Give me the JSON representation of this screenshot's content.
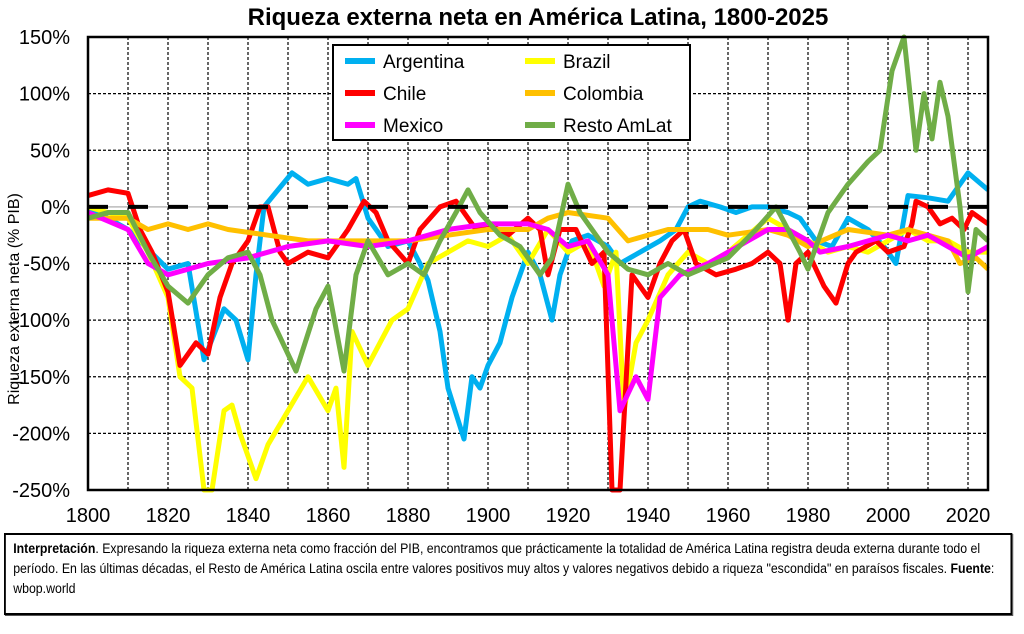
{
  "chart_data": {
    "type": "line",
    "title": "Riqueza externa neta en América Latina, 1800-2025",
    "ylabel": "Riqueza externa neta (% PIB)",
    "xlabel": "",
    "xlim": [
      1800,
      2025
    ],
    "ylim": [
      -250,
      150
    ],
    "xticks": [
      "1800",
      "1820",
      "1840",
      "1860",
      "1880",
      "1900",
      "1920",
      "1940",
      "1960",
      "1980",
      "2000",
      "2020"
    ],
    "yticks": [
      "150%",
      "100%",
      "50%",
      "0%",
      "-50%",
      "-100%",
      "-150%",
      "-200%",
      "-250%"
    ],
    "grid": true,
    "legend_position": "top-center",
    "series": [
      {
        "name": "Argentina",
        "color": "#00b0f0",
        "points": [
          [
            1800,
            0
          ],
          [
            1810,
            -20
          ],
          [
            1820,
            -55
          ],
          [
            1825,
            -50
          ],
          [
            1829,
            -135
          ],
          [
            1834,
            -90
          ],
          [
            1837,
            -100
          ],
          [
            1840,
            -135
          ],
          [
            1842,
            -60
          ],
          [
            1844,
            0
          ],
          [
            1851,
            30
          ],
          [
            1855,
            20
          ],
          [
            1860,
            25
          ],
          [
            1865,
            20
          ],
          [
            1867,
            25
          ],
          [
            1870,
            -10
          ],
          [
            1875,
            -35
          ],
          [
            1880,
            -30
          ],
          [
            1883,
            -50
          ],
          [
            1885,
            -65
          ],
          [
            1888,
            -110
          ],
          [
            1890,
            -160
          ],
          [
            1894,
            -205
          ],
          [
            1896,
            -150
          ],
          [
            1898,
            -160
          ],
          [
            1900,
            -140
          ],
          [
            1903,
            -120
          ],
          [
            1906,
            -80
          ],
          [
            1910,
            -40
          ],
          [
            1913,
            -60
          ],
          [
            1916,
            -100
          ],
          [
            1918,
            -60
          ],
          [
            1921,
            -30
          ],
          [
            1925,
            -25
          ],
          [
            1930,
            -35
          ],
          [
            1933,
            -50
          ],
          [
            1938,
            -40
          ],
          [
            1943,
            -30
          ],
          [
            1947,
            -20
          ],
          [
            1950,
            0
          ],
          [
            1953,
            5
          ],
          [
            1958,
            0
          ],
          [
            1962,
            -5
          ],
          [
            1966,
            0
          ],
          [
            1970,
            0
          ],
          [
            1975,
            -5
          ],
          [
            1978,
            -10
          ],
          [
            1982,
            -30
          ],
          [
            1986,
            -35
          ],
          [
            1990,
            -10
          ],
          [
            1995,
            -20
          ],
          [
            1999,
            -35
          ],
          [
            2002,
            -50
          ],
          [
            2005,
            10
          ],
          [
            2010,
            8
          ],
          [
            2015,
            5
          ],
          [
            2020,
            30
          ],
          [
            2025,
            15
          ]
        ]
      },
      {
        "name": "Brazil",
        "color": "#ffff00",
        "points": [
          [
            1800,
            0
          ],
          [
            1810,
            -10
          ],
          [
            1815,
            -40
          ],
          [
            1820,
            -80
          ],
          [
            1823,
            -150
          ],
          [
            1826,
            -160
          ],
          [
            1829,
            -250
          ],
          [
            1831,
            -250
          ],
          [
            1834,
            -180
          ],
          [
            1836,
            -175
          ],
          [
            1838,
            -200
          ],
          [
            1842,
            -240
          ],
          [
            1845,
            -210
          ],
          [
            1850,
            -180
          ],
          [
            1855,
            -150
          ],
          [
            1860,
            -180
          ],
          [
            1862,
            -160
          ],
          [
            1864,
            -230
          ],
          [
            1866,
            -110
          ],
          [
            1870,
            -140
          ],
          [
            1876,
            -100
          ],
          [
            1880,
            -90
          ],
          [
            1885,
            -50
          ],
          [
            1890,
            -40
          ],
          [
            1895,
            -30
          ],
          [
            1900,
            -35
          ],
          [
            1905,
            -25
          ],
          [
            1910,
            -50
          ],
          [
            1915,
            -20
          ],
          [
            1920,
            -40
          ],
          [
            1925,
            -30
          ],
          [
            1929,
            -70
          ],
          [
            1932,
            -40
          ],
          [
            1934,
            -180
          ],
          [
            1937,
            -120
          ],
          [
            1940,
            -100
          ],
          [
            1945,
            -60
          ],
          [
            1950,
            -40
          ],
          [
            1955,
            -50
          ],
          [
            1960,
            -40
          ],
          [
            1965,
            -25
          ],
          [
            1970,
            -10
          ],
          [
            1975,
            -20
          ],
          [
            1980,
            -30
          ],
          [
            1985,
            -40
          ],
          [
            1990,
            -35
          ],
          [
            1995,
            -40
          ],
          [
            2000,
            -30
          ],
          [
            2005,
            -20
          ],
          [
            2010,
            -30
          ],
          [
            2015,
            -30
          ],
          [
            2020,
            -40
          ],
          [
            2025,
            -40
          ]
        ]
      },
      {
        "name": "Chile",
        "color": "#ff0000",
        "points": [
          [
            1800,
            10
          ],
          [
            1805,
            15
          ],
          [
            1810,
            12
          ],
          [
            1813,
            -20
          ],
          [
            1816,
            -40
          ],
          [
            1820,
            -75
          ],
          [
            1823,
            -140
          ],
          [
            1827,
            -120
          ],
          [
            1830,
            -130
          ],
          [
            1833,
            -80
          ],
          [
            1836,
            -50
          ],
          [
            1840,
            -30
          ],
          [
            1843,
            0
          ],
          [
            1845,
            0
          ],
          [
            1848,
            -40
          ],
          [
            1850,
            -50
          ],
          [
            1855,
            -40
          ],
          [
            1860,
            -45
          ],
          [
            1865,
            -20
          ],
          [
            1869,
            5
          ],
          [
            1872,
            -5
          ],
          [
            1875,
            -30
          ],
          [
            1880,
            -50
          ],
          [
            1883,
            -20
          ],
          [
            1888,
            0
          ],
          [
            1892,
            5
          ],
          [
            1897,
            -20
          ],
          [
            1900,
            -15
          ],
          [
            1905,
            -25
          ],
          [
            1910,
            -10
          ],
          [
            1913,
            -20
          ],
          [
            1915,
            -60
          ],
          [
            1918,
            -20
          ],
          [
            1922,
            -20
          ],
          [
            1926,
            -50
          ],
          [
            1929,
            -40
          ],
          [
            1931,
            -250
          ],
          [
            1933,
            -250
          ],
          [
            1936,
            -60
          ],
          [
            1940,
            -80
          ],
          [
            1943,
            -50
          ],
          [
            1946,
            -30
          ],
          [
            1949,
            -20
          ],
          [
            1952,
            -50
          ],
          [
            1957,
            -60
          ],
          [
            1962,
            -55
          ],
          [
            1966,
            -50
          ],
          [
            1970,
            -40
          ],
          [
            1973,
            -50
          ],
          [
            1975,
            -100
          ],
          [
            1977,
            -50
          ],
          [
            1980,
            -40
          ],
          [
            1984,
            -70
          ],
          [
            1987,
            -85
          ],
          [
            1990,
            -50
          ],
          [
            1992,
            -40
          ],
          [
            1997,
            -30
          ],
          [
            2000,
            -40
          ],
          [
            2004,
            -35
          ],
          [
            2006,
            -15
          ],
          [
            2007,
            5
          ],
          [
            2010,
            0
          ],
          [
            2013,
            -15
          ],
          [
            2016,
            -10
          ],
          [
            2019,
            -20
          ],
          [
            2021,
            -5
          ],
          [
            2025,
            -15
          ]
        ]
      },
      {
        "name": "Colombia",
        "color": "#ffc000",
        "points": [
          [
            1800,
            -10
          ],
          [
            1810,
            -10
          ],
          [
            1815,
            -20
          ],
          [
            1820,
            -15
          ],
          [
            1825,
            -20
          ],
          [
            1830,
            -15
          ],
          [
            1835,
            -20
          ],
          [
            1845,
            -25
          ],
          [
            1855,
            -30
          ],
          [
            1870,
            -30
          ],
          [
            1880,
            -30
          ],
          [
            1890,
            -25
          ],
          [
            1900,
            -20
          ],
          [
            1910,
            -20
          ],
          [
            1915,
            -10
          ],
          [
            1920,
            -5
          ],
          [
            1930,
            -10
          ],
          [
            1935,
            -30
          ],
          [
            1945,
            -20
          ],
          [
            1955,
            -20
          ],
          [
            1960,
            -25
          ],
          [
            1970,
            -20
          ],
          [
            1975,
            -25
          ],
          [
            1980,
            -35
          ],
          [
            1990,
            -20
          ],
          [
            2000,
            -25
          ],
          [
            2005,
            -20
          ],
          [
            2010,
            -25
          ],
          [
            2015,
            -30
          ],
          [
            2018,
            -50
          ],
          [
            2022,
            -45
          ],
          [
            2025,
            -55
          ]
        ]
      },
      {
        "name": "Mexico",
        "color": "#ff00ff",
        "points": [
          [
            1800,
            -5
          ],
          [
            1810,
            -20
          ],
          [
            1815,
            -50
          ],
          [
            1820,
            -60
          ],
          [
            1825,
            -55
          ],
          [
            1830,
            -50
          ],
          [
            1840,
            -45
          ],
          [
            1850,
            -35
          ],
          [
            1860,
            -30
          ],
          [
            1870,
            -35
          ],
          [
            1880,
            -30
          ],
          [
            1890,
            -20
          ],
          [
            1900,
            -15
          ],
          [
            1910,
            -15
          ],
          [
            1915,
            -20
          ],
          [
            1920,
            -35
          ],
          [
            1925,
            -30
          ],
          [
            1930,
            -60
          ],
          [
            1933,
            -180
          ],
          [
            1937,
            -150
          ],
          [
            1940,
            -170
          ],
          [
            1943,
            -80
          ],
          [
            1948,
            -60
          ],
          [
            1955,
            -50
          ],
          [
            1960,
            -40
          ],
          [
            1965,
            -30
          ],
          [
            1970,
            -20
          ],
          [
            1975,
            -20
          ],
          [
            1980,
            -30
          ],
          [
            1983,
            -40
          ],
          [
            1990,
            -35
          ],
          [
            1995,
            -30
          ],
          [
            2000,
            -25
          ],
          [
            2005,
            -30
          ],
          [
            2010,
            -25
          ],
          [
            2015,
            -35
          ],
          [
            2020,
            -45
          ],
          [
            2025,
            -35
          ]
        ]
      },
      {
        "name": "Resto AmLat",
        "color": "#70ad47",
        "points": [
          [
            1800,
            -10
          ],
          [
            1805,
            -5
          ],
          [
            1810,
            -5
          ],
          [
            1815,
            -40
          ],
          [
            1820,
            -70
          ],
          [
            1825,
            -85
          ],
          [
            1830,
            -60
          ],
          [
            1835,
            -45
          ],
          [
            1840,
            -40
          ],
          [
            1843,
            -60
          ],
          [
            1846,
            -100
          ],
          [
            1852,
            -145
          ],
          [
            1857,
            -90
          ],
          [
            1860,
            -70
          ],
          [
            1864,
            -145
          ],
          [
            1867,
            -60
          ],
          [
            1870,
            -30
          ],
          [
            1875,
            -60
          ],
          [
            1880,
            -50
          ],
          [
            1884,
            -60
          ],
          [
            1888,
            -30
          ],
          [
            1892,
            -5
          ],
          [
            1895,
            15
          ],
          [
            1898,
            -5
          ],
          [
            1903,
            -25
          ],
          [
            1908,
            -35
          ],
          [
            1913,
            -60
          ],
          [
            1916,
            -45
          ],
          [
            1920,
            20
          ],
          [
            1923,
            -5
          ],
          [
            1928,
            -30
          ],
          [
            1930,
            -40
          ],
          [
            1935,
            -55
          ],
          [
            1940,
            -60
          ],
          [
            1945,
            -50
          ],
          [
            1950,
            -60
          ],
          [
            1960,
            -45
          ],
          [
            1967,
            -20
          ],
          [
            1972,
            0
          ],
          [
            1978,
            -40
          ],
          [
            1980,
            -55
          ],
          [
            1985,
            -5
          ],
          [
            1990,
            20
          ],
          [
            1995,
            40
          ],
          [
            1998,
            50
          ],
          [
            2001,
            120
          ],
          [
            2004,
            150
          ],
          [
            2007,
            50
          ],
          [
            2009,
            100
          ],
          [
            2011,
            60
          ],
          [
            2013,
            110
          ],
          [
            2015,
            80
          ],
          [
            2018,
            0
          ],
          [
            2020,
            -75
          ],
          [
            2022,
            -20
          ],
          [
            2025,
            -30
          ]
        ]
      }
    ]
  },
  "note": {
    "label": "Interpretación",
    "text": ". Expresando la riqueza externa neta como fracción del PIB, encontramos que prácticamente la totalidad de América Latina registra deuda externa durante todo el período. En las últimas décadas, el Resto de América Latina oscila entre valores positivos muy altos y valores negativos debido a riqueza \"escondida\" en paraísos fiscales. ",
    "source_label": "Fuente",
    "source": ": wbop.world"
  }
}
